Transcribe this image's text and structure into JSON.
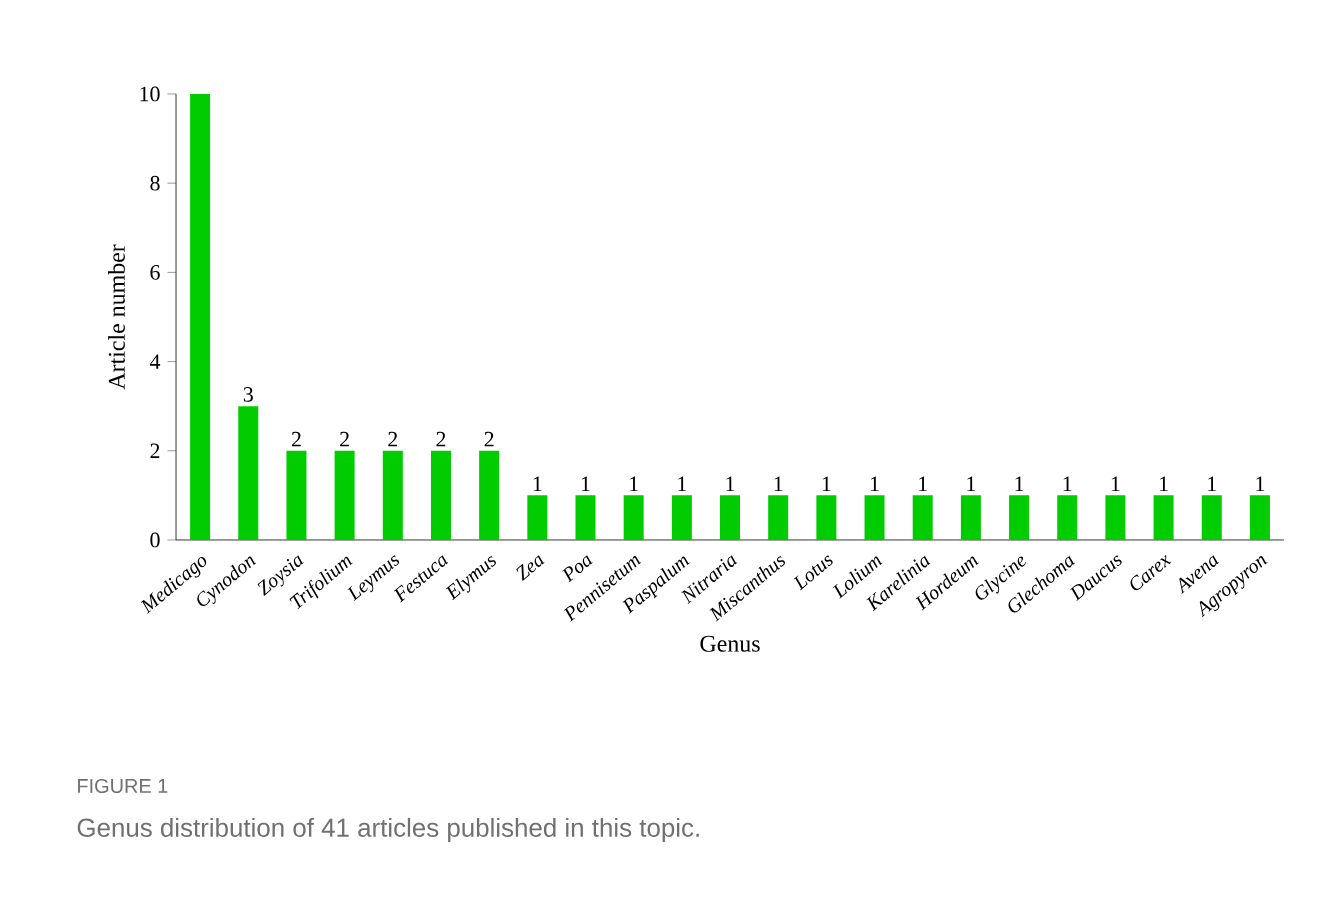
{
  "chart_data": {
    "type": "bar",
    "xlabel": "Genus",
    "ylabel": "Article number",
    "categories": [
      "Medicago",
      "Cynodon",
      "Zoysia",
      "Trifolium",
      "Leymus",
      "Festuca",
      "Elymus",
      "Zea",
      "Poa",
      "Pennisetum",
      "Paspalum",
      "Nitraria",
      "Miscanthus",
      "Lotus",
      "Lolium",
      "Karelinia",
      "Hordeum",
      "Glycine",
      "Glechoma",
      "Daucus",
      "Carex",
      "Avena",
      "Agropyron"
    ],
    "values": [
      10,
      3,
      2,
      2,
      2,
      2,
      2,
      1,
      1,
      1,
      1,
      1,
      1,
      1,
      1,
      1,
      1,
      1,
      1,
      1,
      1,
      1,
      1
    ],
    "value_labels": [
      null,
      "3",
      "2",
      "2",
      "2",
      "2",
      "2",
      "1",
      "1",
      "1",
      "1",
      "1",
      "1",
      "1",
      "1",
      "1",
      "1",
      "1",
      "1",
      "1",
      "1",
      "1",
      "1"
    ],
    "color": "#00cc00",
    "ylim": [
      0,
      10
    ],
    "yticks": [
      0,
      2,
      4,
      6,
      8,
      10
    ],
    "annotations": [
      "FIGURE 1",
      "Genus distribution of 41 articles published in this topic."
    ]
  }
}
